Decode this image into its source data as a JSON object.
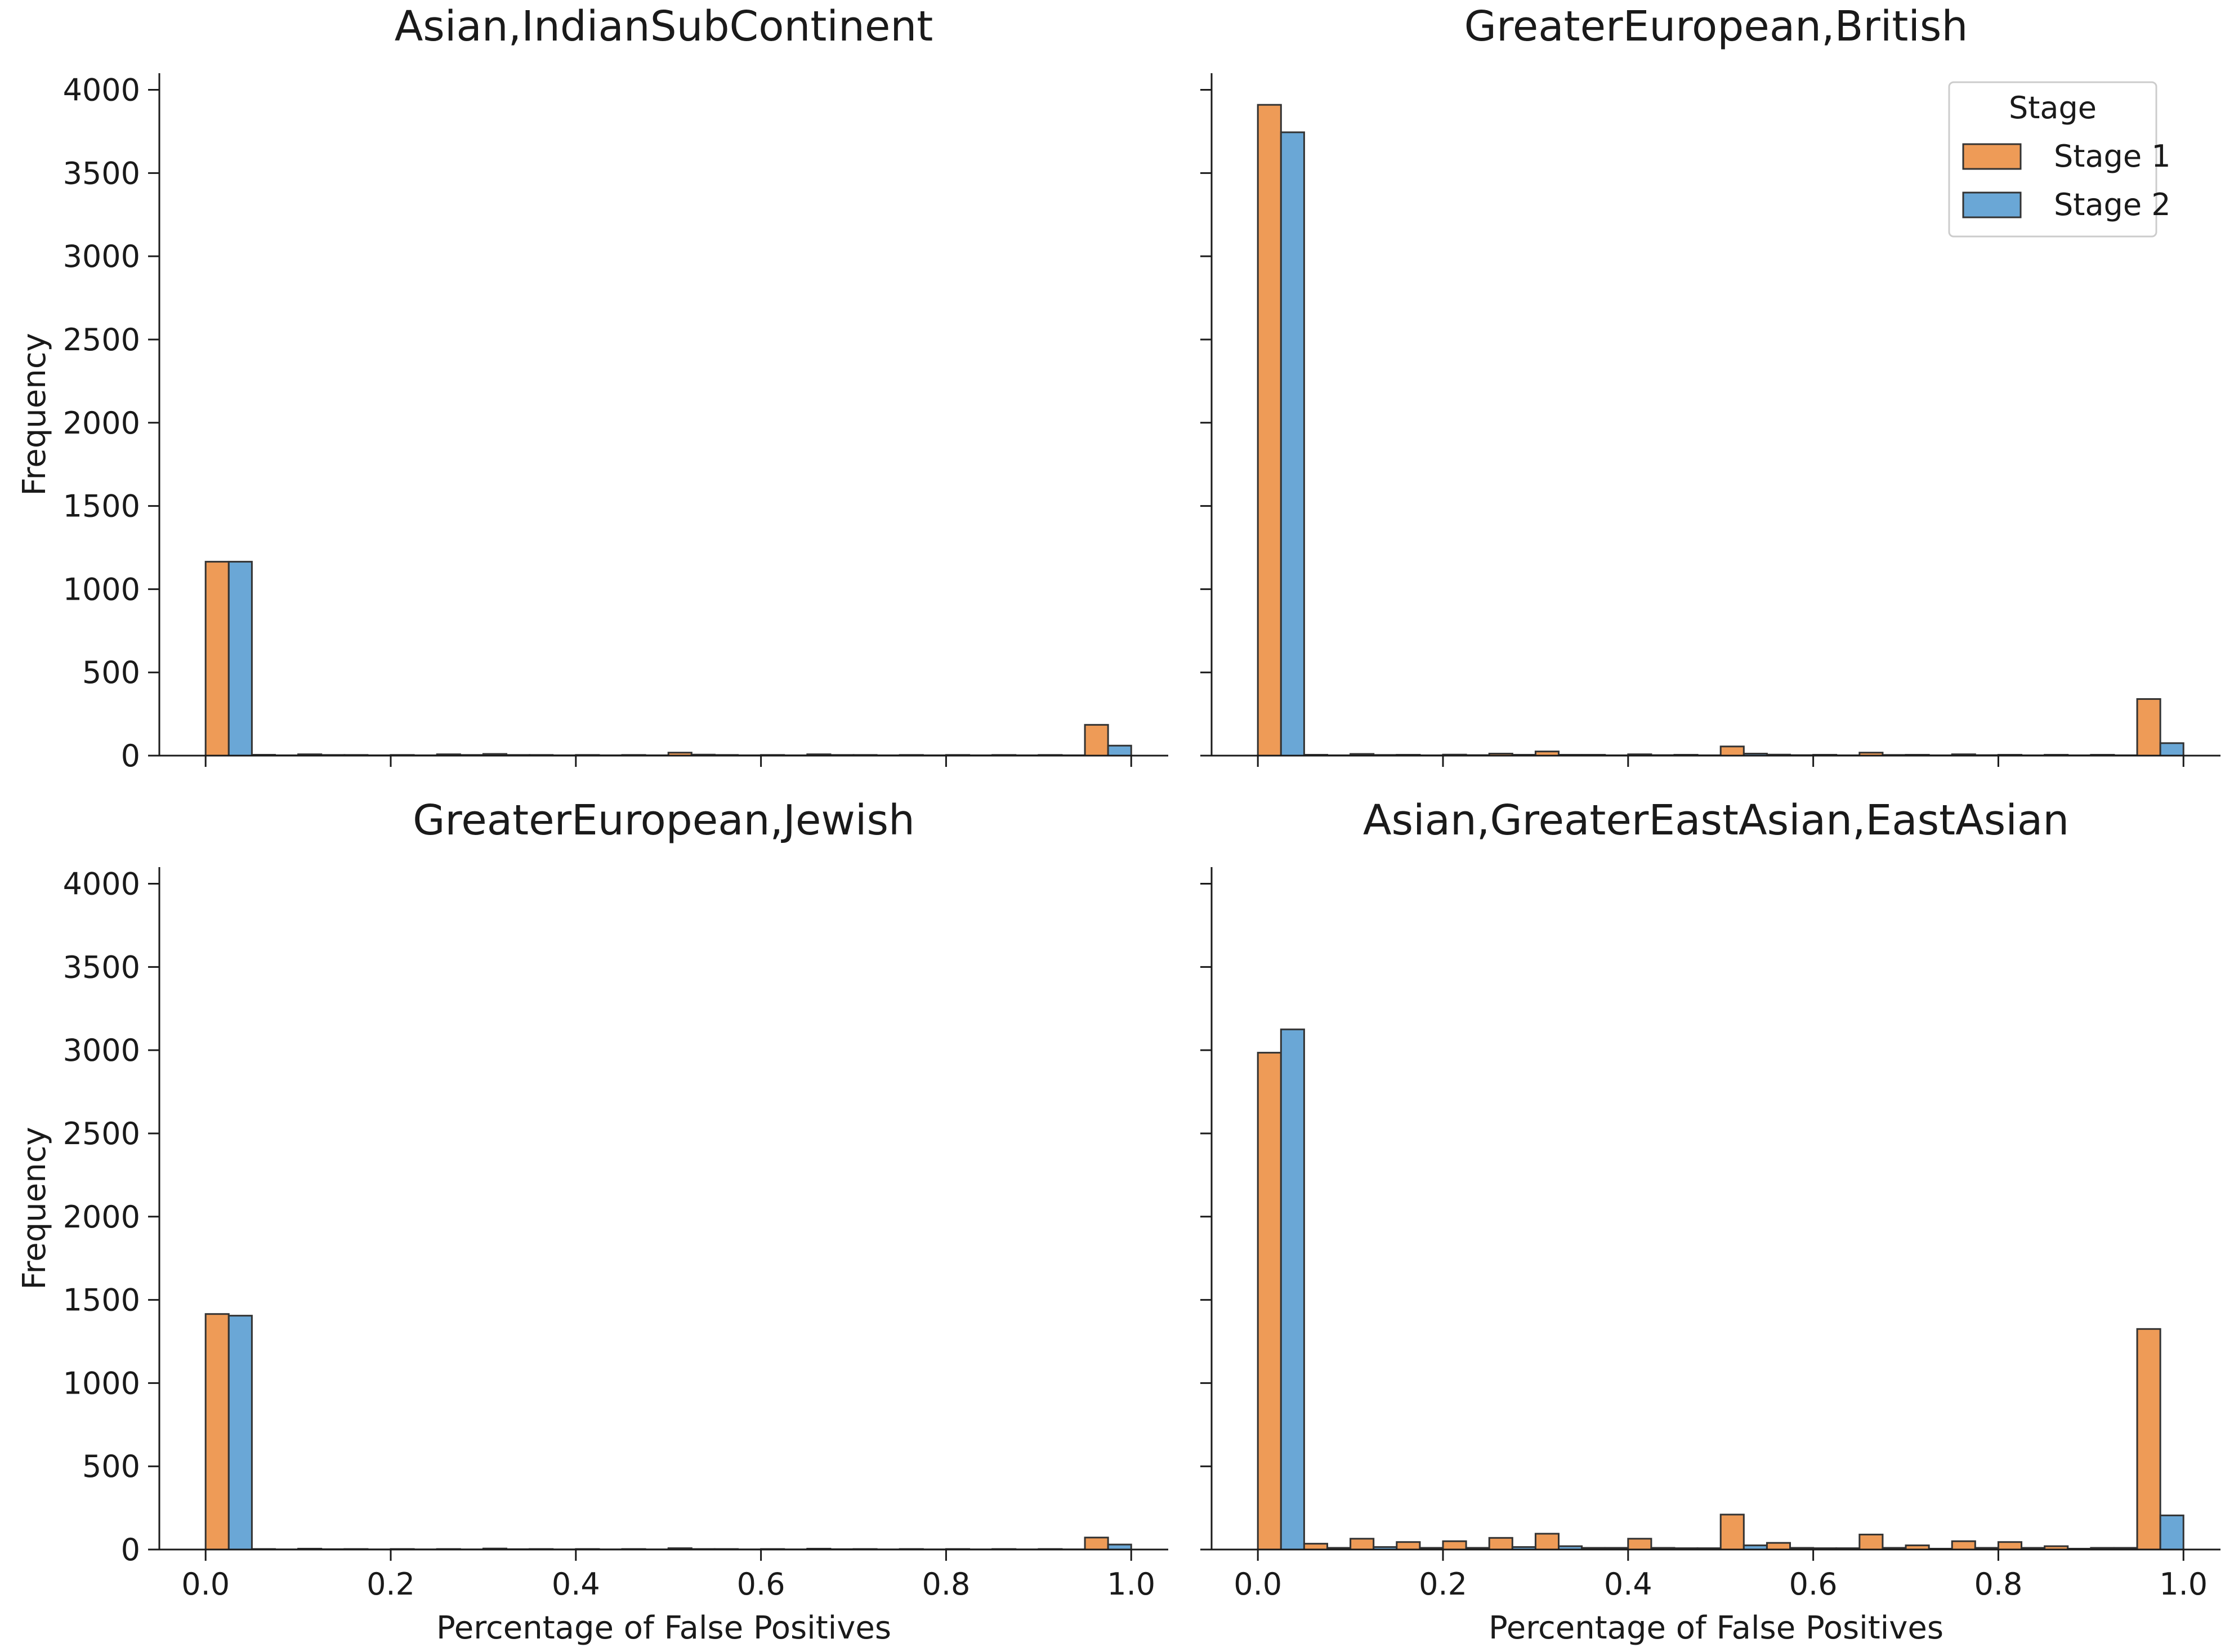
{
  "figure": {
    "xlabel": "Percentage of False Positives",
    "ylabel": "Frequency"
  },
  "colors": {
    "stage1": "#EE9B57",
    "stage2": "#6AA7D6",
    "edge": "#333333",
    "axis": "#1a1a1a"
  },
  "legend": {
    "title": "Stage",
    "placement": "top-right of top-right panel",
    "items": [
      "Stage 1",
      "Stage 2"
    ]
  },
  "chart_data": [
    {
      "type": "bar",
      "subtype": "grouped histogram",
      "title": "Asian,IndianSubContinent",
      "xlabel": "",
      "ylabel": "Frequency",
      "xlim": [
        -0.05,
        1.04
      ],
      "ylim": [
        0,
        4100
      ],
      "xticks": [
        "0.0",
        "0.2",
        "0.4",
        "0.6",
        "0.8",
        "1.0"
      ],
      "xtick_labels_shown": false,
      "yticks": [
        "0",
        "500",
        "1000",
        "1500",
        "2000",
        "2500",
        "3000",
        "3500",
        "4000"
      ],
      "bin_width": 0.05,
      "bin_starts": [
        0.0,
        0.05,
        0.1,
        0.15,
        0.2,
        0.25,
        0.3,
        0.35,
        0.4,
        0.45,
        0.5,
        0.55,
        0.6,
        0.65,
        0.7,
        0.75,
        0.8,
        0.85,
        0.9,
        0.95
      ],
      "series": [
        {
          "name": "Stage 1",
          "values": [
            1165,
            5,
            8,
            4,
            4,
            8,
            10,
            4,
            4,
            4,
            18,
            4,
            4,
            8,
            4,
            4,
            4,
            4,
            4,
            185
          ]
        },
        {
          "name": "Stage 2",
          "values": [
            1165,
            2,
            4,
            2,
            2,
            4,
            4,
            2,
            2,
            2,
            6,
            2,
            2,
            4,
            2,
            2,
            2,
            2,
            2,
            60
          ]
        }
      ]
    },
    {
      "type": "bar",
      "subtype": "grouped histogram",
      "title": "GreaterEuropean,British",
      "xlabel": "",
      "ylabel": "",
      "xlim": [
        -0.05,
        1.04
      ],
      "ylim": [
        0,
        4100
      ],
      "xticks": [
        "0.0",
        "0.2",
        "0.4",
        "0.6",
        "0.8",
        "1.0"
      ],
      "xtick_labels_shown": false,
      "yticks": [],
      "bin_width": 0.05,
      "bin_starts": [
        0.0,
        0.05,
        0.1,
        0.15,
        0.2,
        0.25,
        0.3,
        0.35,
        0.4,
        0.45,
        0.5,
        0.55,
        0.6,
        0.65,
        0.7,
        0.75,
        0.8,
        0.85,
        0.9,
        0.95
      ],
      "series": [
        {
          "name": "Stage 1",
          "values": [
            3910,
            5,
            10,
            5,
            6,
            12,
            25,
            5,
            8,
            5,
            55,
            6,
            5,
            18,
            5,
            8,
            5,
            5,
            5,
            340
          ]
        },
        {
          "name": "Stage 2",
          "values": [
            3745,
            2,
            4,
            2,
            3,
            5,
            5,
            2,
            3,
            2,
            12,
            3,
            2,
            4,
            2,
            3,
            2,
            2,
            2,
            75
          ]
        }
      ]
    },
    {
      "type": "bar",
      "subtype": "grouped histogram",
      "title": "GreaterEuropean,Jewish",
      "xlabel": "Percentage of False Positives",
      "ylabel": "Frequency",
      "xlim": [
        -0.05,
        1.04
      ],
      "ylim": [
        0,
        4100
      ],
      "xticks": [
        "0.0",
        "0.2",
        "0.4",
        "0.6",
        "0.8",
        "1.0"
      ],
      "xtick_labels_shown": true,
      "yticks": [
        "0",
        "500",
        "1000",
        "1500",
        "2000",
        "2500",
        "3000",
        "3500",
        "4000"
      ],
      "bin_width": 0.05,
      "bin_starts": [
        0.0,
        0.05,
        0.1,
        0.15,
        0.2,
        0.25,
        0.3,
        0.35,
        0.4,
        0.45,
        0.5,
        0.55,
        0.6,
        0.65,
        0.7,
        0.75,
        0.8,
        0.85,
        0.9,
        0.95
      ],
      "series": [
        {
          "name": "Stage 1",
          "values": [
            1415,
            3,
            5,
            3,
            3,
            3,
            6,
            3,
            3,
            3,
            8,
            3,
            3,
            5,
            3,
            3,
            3,
            3,
            3,
            72
          ]
        },
        {
          "name": "Stage 2",
          "values": [
            1405,
            1,
            2,
            1,
            1,
            1,
            2,
            1,
            1,
            1,
            3,
            1,
            1,
            2,
            1,
            1,
            1,
            1,
            1,
            30
          ]
        }
      ]
    },
    {
      "type": "bar",
      "subtype": "grouped histogram",
      "title": "Asian,GreaterEastAsian,EastAsian",
      "xlabel": "Percentage of False Positives",
      "ylabel": "",
      "xlim": [
        -0.05,
        1.04
      ],
      "ylim": [
        0,
        4100
      ],
      "xticks": [
        "0.0",
        "0.2",
        "0.4",
        "0.6",
        "0.8",
        "1.0"
      ],
      "xtick_labels_shown": true,
      "yticks": [],
      "bin_width": 0.05,
      "bin_starts": [
        0.0,
        0.05,
        0.1,
        0.15,
        0.2,
        0.25,
        0.3,
        0.35,
        0.4,
        0.45,
        0.5,
        0.55,
        0.6,
        0.65,
        0.7,
        0.75,
        0.8,
        0.85,
        0.9,
        0.95
      ],
      "series": [
        {
          "name": "Stage 1",
          "values": [
            2985,
            35,
            65,
            45,
            50,
            70,
            95,
            10,
            65,
            8,
            210,
            40,
            8,
            90,
            25,
            50,
            45,
            20,
            10,
            1325
          ]
        },
        {
          "name": "Stage 2",
          "values": [
            3125,
            10,
            15,
            10,
            10,
            15,
            20,
            10,
            10,
            8,
            25,
            10,
            8,
            10,
            5,
            10,
            10,
            5,
            10,
            205
          ]
        }
      ]
    }
  ]
}
